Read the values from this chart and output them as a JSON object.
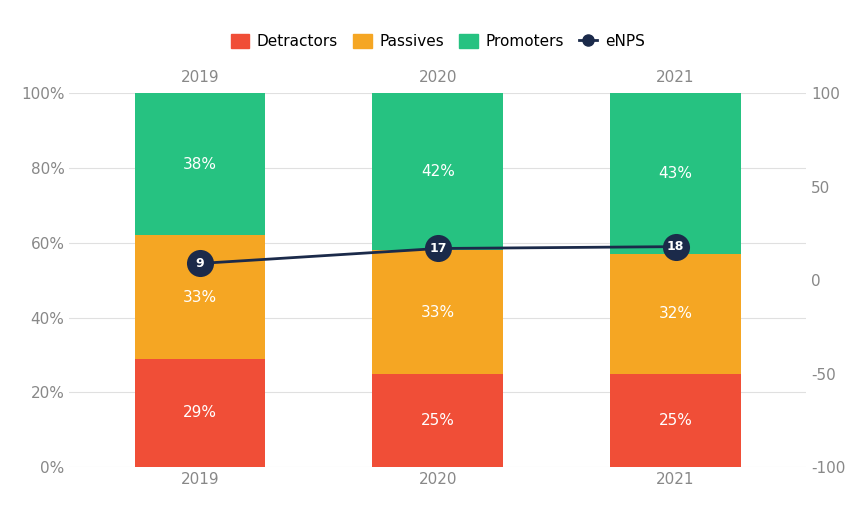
{
  "years": [
    "2019",
    "2020",
    "2021"
  ],
  "detractors": [
    29,
    25,
    25
  ],
  "passives": [
    33,
    33,
    32
  ],
  "promoters": [
    38,
    42,
    43
  ],
  "enps": [
    9,
    17,
    18
  ],
  "detractors_labels": [
    "29%",
    "25%",
    "25%"
  ],
  "passives_labels": [
    "33%",
    "33%",
    "32%"
  ],
  "promoters_labels": [
    "38%",
    "42%",
    "43%"
  ],
  "enps_labels": [
    "9",
    "17",
    "18"
  ],
  "color_detractors": "#F04E37",
  "color_passives": "#F5A623",
  "color_promoters": "#26C281",
  "color_enps_line": "#1B2A4A",
  "color_background": "#FFFFFF",
  "color_grid": "#E0E0E0",
  "bar_width": 0.55,
  "enps_scale_min": -100,
  "enps_scale_max": 100,
  "legend_labels": [
    "Detractors",
    "Passives",
    "Promoters",
    "eNPS"
  ],
  "label_fontsize": 11,
  "legend_fontsize": 11,
  "tick_fontsize": 11,
  "enps_marker_size": 380,
  "text_color_on_bar": "#FFFFFF",
  "tick_color": "#888888"
}
